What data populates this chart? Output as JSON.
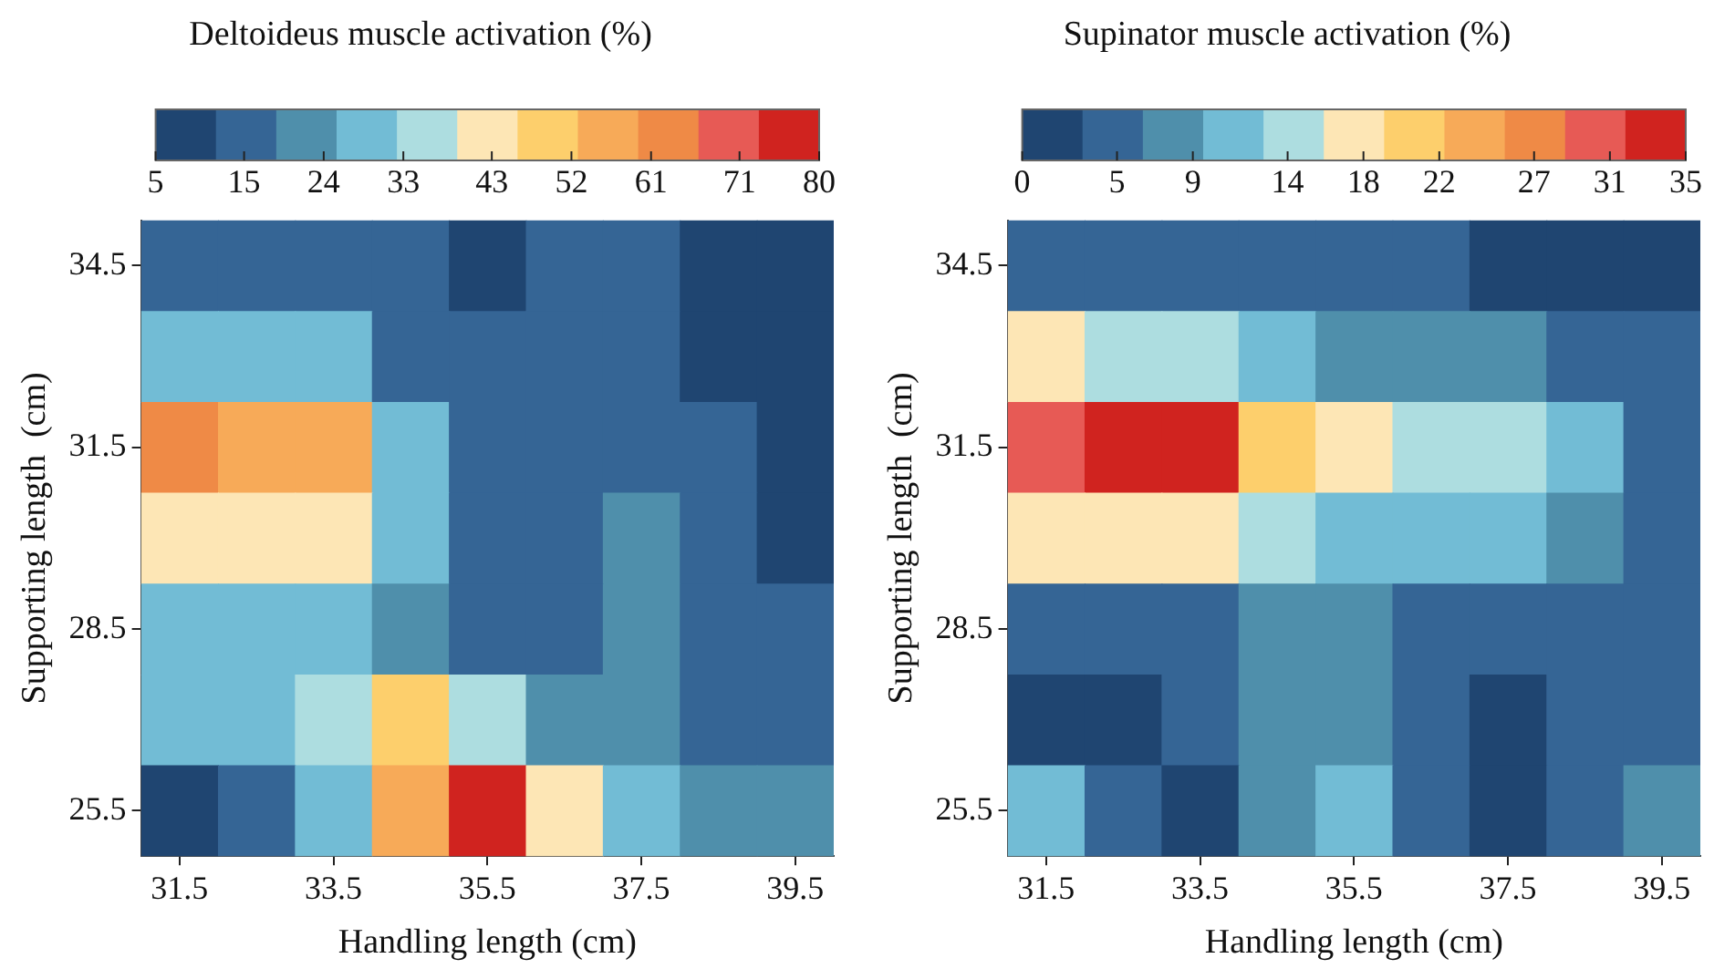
{
  "chart_data": [
    {
      "type": "heatmap",
      "title": "Deltoideus muscle activation (%)",
      "xlabel": "Handling length (cm)",
      "ylabel": "Supporting length  (cm)",
      "categories": [
        "31.5",
        null,
        "33.5",
        null,
        "35.5",
        null,
        "37.5",
        null,
        "39.5"
      ],
      "y_categories": [
        "34.5",
        null,
        "31.5",
        null,
        "28.5",
        null,
        "25.5"
      ],
      "cells": [
        [
          12,
          13,
          14,
          13,
          10,
          12,
          12,
          9,
          8
        ],
        [
          32,
          32,
          30,
          16,
          13,
          13,
          13,
          11,
          9
        ],
        [
          60,
          57,
          56,
          30,
          14,
          13,
          12,
          14,
          10
        ],
        [
          45,
          45,
          42,
          27,
          13,
          13,
          20,
          15,
          9
        ],
        [
          28,
          28,
          28,
          22,
          15,
          17,
          20,
          16,
          12
        ],
        [
          26,
          28,
          35,
          50,
          35,
          22,
          20,
          18,
          16
        ],
        [
          10,
          16,
          26,
          55,
          80,
          45,
          28,
          20,
          20
        ]
      ],
      "clim": [
        5,
        80
      ],
      "cticks": [
        5,
        15,
        24,
        33,
        43,
        52,
        61,
        71,
        80
      ],
      "colors": [
        "#1f4571",
        "#356595",
        "#4f8fab",
        "#72bcd5",
        "#addde0",
        "#fde6b5",
        "#fdcf6c",
        "#f7aa58",
        "#ef8a46",
        "#e75a55",
        "#d0231f"
      ]
    },
    {
      "type": "heatmap",
      "title": "Supinator muscle activation (%)",
      "xlabel": "Handling length (cm)",
      "ylabel": "Supporting length  (cm)",
      "categories": [
        "31.5",
        null,
        "33.5",
        null,
        "35.5",
        null,
        "37.5",
        null,
        "39.5"
      ],
      "y_categories": [
        "34.5",
        null,
        "31.5",
        null,
        "28.5",
        null,
        "25.5"
      ],
      "cells": [
        [
          5,
          5,
          4,
          4,
          5,
          4,
          3,
          2,
          2
        ],
        [
          16,
          15,
          14,
          10,
          8,
          8,
          7,
          5,
          4
        ],
        [
          30,
          32,
          33,
          22,
          17,
          15,
          15,
          10,
          6
        ],
        [
          18,
          18,
          17,
          14,
          12,
          11,
          10,
          8,
          5
        ],
        [
          5,
          5,
          6,
          8,
          8,
          6,
          5,
          5,
          4
        ],
        [
          3,
          2,
          5,
          8,
          8,
          5,
          2,
          4,
          6
        ],
        [
          10,
          5,
          2,
          7,
          12,
          6,
          1,
          4,
          7
        ]
      ],
      "clim": [
        0,
        35
      ],
      "cticks": [
        0,
        5,
        9,
        14,
        18,
        22,
        27,
        31,
        35
      ],
      "colors": [
        "#1f4571",
        "#356595",
        "#4f8fab",
        "#72bcd5",
        "#addde0",
        "#fde6b5",
        "#fdcf6c",
        "#f7aa58",
        "#ef8a46",
        "#e75a55",
        "#d0231f"
      ]
    }
  ]
}
